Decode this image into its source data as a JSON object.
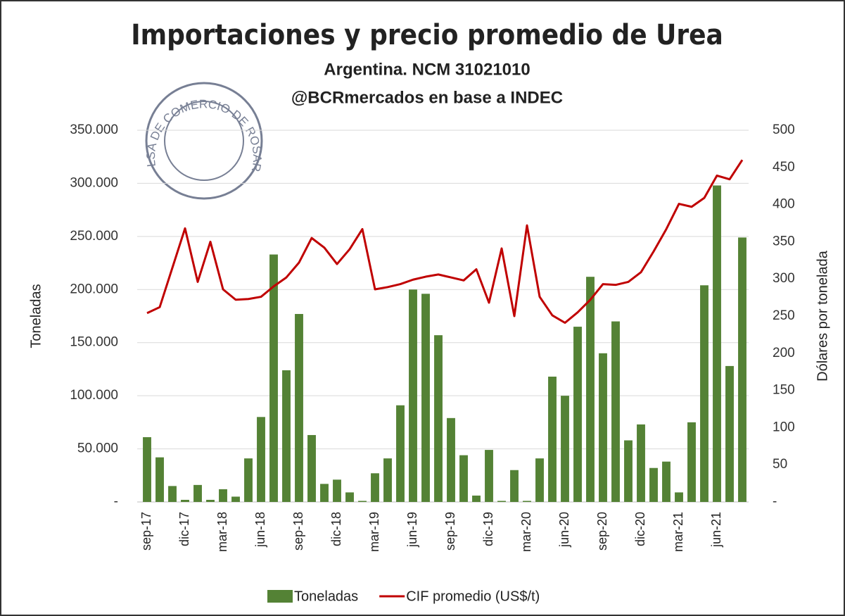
{
  "chart_data": {
    "type": "bar_line",
    "title": "Importaciones y precio promedio de Urea",
    "subtitle": "Argentina. NCM 31021010",
    "source": "@BCRmercados en base a INDEC",
    "logo": "BOLSA DE COMERCIO DE ROSARIO",
    "ylabel": "Toneladas",
    "y2label": "Dólares por tonelada",
    "categories": [
      "sep-17",
      null,
      null,
      "dic-17",
      null,
      null,
      "mar-18",
      null,
      null,
      "jun-18",
      null,
      null,
      "sep-18",
      null,
      null,
      "dic-18",
      null,
      null,
      "mar-19",
      null,
      null,
      "jun-19",
      null,
      null,
      "sep-19",
      null,
      null,
      "dic-19",
      null,
      null,
      "mar-20",
      null,
      null,
      "jun-20",
      null,
      null,
      "sep-20",
      null,
      null,
      "dic-20",
      null,
      null,
      "mar-21",
      null,
      null,
      "jun-21",
      null,
      null
    ],
    "series": [
      {
        "name": "Toneladas",
        "color": "#548235",
        "kind": "bar",
        "values": [
          61000,
          42000,
          15000,
          2000,
          16000,
          2000,
          12000,
          5000,
          41000,
          80000,
          233000,
          124000,
          177000,
          63000,
          17000,
          21000,
          9000,
          1000,
          27000,
          41000,
          91000,
          200000,
          196000,
          157000,
          79000,
          44000,
          6000,
          49000,
          1000,
          30000,
          1000,
          41000,
          118000,
          100000,
          165000,
          212000,
          140000,
          170000,
          58000,
          73000,
          32000,
          38000,
          9000,
          75000,
          204000,
          298000,
          128000,
          249000
        ]
      },
      {
        "name": "CIF promedio (US$/t)",
        "color": "#c00000",
        "kind": "line",
        "axis": "y2",
        "values": [
          254,
          262,
          315,
          368,
          296,
          350,
          286,
          272,
          273,
          276,
          290,
          302,
          322,
          355,
          342,
          320,
          340,
          367,
          286,
          289,
          293,
          299,
          303,
          306,
          302,
          298,
          313,
          268,
          341,
          250,
          372,
          276,
          251,
          241,
          255,
          272,
          293,
          292,
          296,
          309,
          337,
          367,
          401,
          397,
          409,
          439,
          434,
          460
        ]
      }
    ],
    "ylim": [
      0,
      350000
    ],
    "yticks": [
      {
        "value": 0,
        "label": "-"
      },
      {
        "value": 50000,
        "label": "50.000"
      },
      {
        "value": 100000,
        "label": "100.000"
      },
      {
        "value": 150000,
        "label": "150.000"
      },
      {
        "value": 200000,
        "label": "200.000"
      },
      {
        "value": 250000,
        "label": "250.000"
      },
      {
        "value": 300000,
        "label": "300.000"
      },
      {
        "value": 350000,
        "label": "350.000"
      }
    ],
    "y2lim": [
      0,
      500
    ],
    "y2ticks": [
      {
        "value": 0,
        "label": "-"
      },
      50,
      100,
      150,
      200,
      250,
      300,
      350,
      400,
      450,
      500
    ],
    "grid": true,
    "legend": "bottom"
  }
}
